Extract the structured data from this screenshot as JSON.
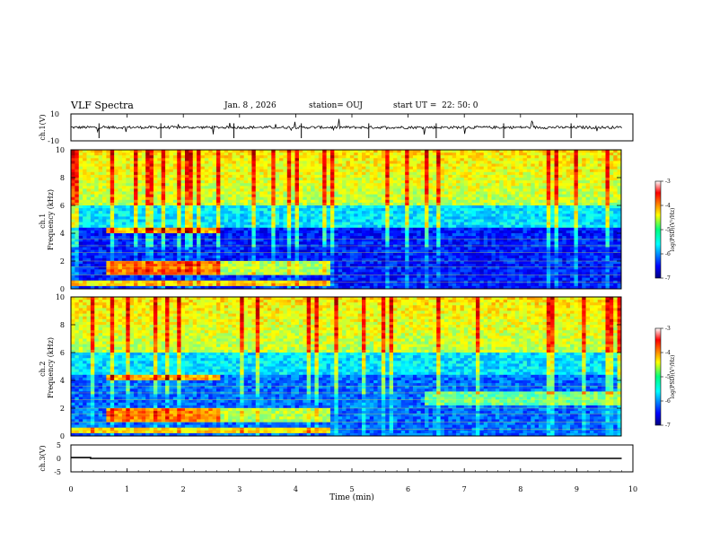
{
  "header": {
    "title": "VLF Spectra",
    "date": "Jan. 8 , 2026",
    "station": "station= OUJ",
    "start_ut": "start UT =  22: 50: 0"
  },
  "chart_data": [
    {
      "type": "line",
      "panel": "ch.1(V)",
      "ylabel": "ch.1(V)",
      "ylim": [
        -10,
        10
      ],
      "y_ticks": [
        "10",
        "-10"
      ],
      "xlim": [
        0,
        10
      ],
      "description_values": {
        "baseline": 0.0,
        "noise_amplitude": 1.0
      },
      "series": [
        {
          "x": [
            0,
            10
          ],
          "values": [
            0,
            0
          ]
        }
      ]
    },
    {
      "type": "heatmap",
      "panel": "ch.1 spectrogram",
      "ylabel": "ch.1\nFrequency (kHz)",
      "ylim": [
        0,
        10
      ],
      "y_ticks": [
        "0",
        "2",
        "4",
        "6",
        "8",
        "10"
      ],
      "xlim": [
        0,
        10
      ],
      "colorbar": {
        "label": "log(PSD)(V²/Hz)",
        "range": [
          -7,
          -3
        ],
        "ticks": [
          "-3",
          "-4",
          "-5",
          "-6",
          "-7"
        ]
      }
    },
    {
      "type": "heatmap",
      "panel": "ch.2 spectrogram",
      "ylabel": "ch.2\nFrequency (kHz)",
      "ylim": [
        0,
        10
      ],
      "y_ticks": [
        "0",
        "2",
        "4",
        "6",
        "8",
        "10"
      ],
      "xlim": [
        0,
        10
      ],
      "colorbar": {
        "label": "log(PSD)(V²/Hz)",
        "range": [
          -7,
          -3
        ],
        "ticks": [
          "-3",
          "-4",
          "-5",
          "-6",
          "-7"
        ]
      }
    },
    {
      "type": "line",
      "panel": "ch.3(V)",
      "ylabel": "ch.3(V)",
      "ylim": [
        -5,
        5
      ],
      "y_ticks": [
        "5",
        "0",
        "-5"
      ],
      "xlim": [
        0,
        10
      ],
      "series": [
        {
          "x": [
            0,
            0.35,
            0.35,
            9.8
          ],
          "values": [
            0.3,
            0.3,
            0,
            0
          ]
        }
      ]
    }
  ],
  "x_axis": {
    "label": "Time (min)",
    "ticks": [
      "0",
      "1",
      "2",
      "3",
      "4",
      "5",
      "6",
      "7",
      "8",
      "9",
      "10"
    ],
    "range": [
      0,
      10
    ]
  },
  "colors": {
    "jet_low": "#00007f",
    "jet_mid": "#00ff7f",
    "jet_high": "#7f0000"
  }
}
